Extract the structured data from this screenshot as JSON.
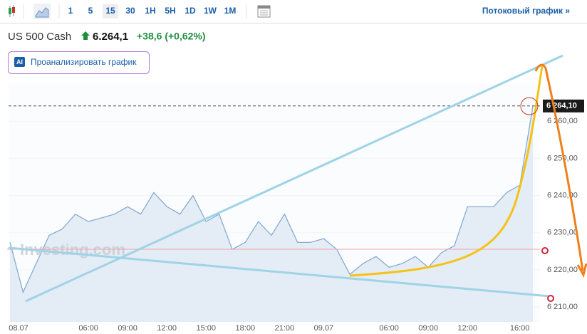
{
  "toolbar": {
    "intervals": [
      "1",
      "5",
      "15",
      "30",
      "1H",
      "5H",
      "1D",
      "1W",
      "1M"
    ],
    "stream_link": "Потоковый график »"
  },
  "header": {
    "symbol": "US 500 Cash",
    "price": "6.264,1",
    "change": "+38,6 (+0,62%)"
  },
  "analyze_button": {
    "badge": "AI",
    "label": "Проанализировать график"
  },
  "watermark": "Investing.com",
  "chart_data": {
    "type": "area",
    "categories": [
      "08.07",
      null,
      null,
      null,
      null,
      null,
      "06:00",
      null,
      null,
      "09:00",
      null,
      null,
      "12:00",
      null,
      null,
      "15:00",
      null,
      null,
      "18:00",
      null,
      null,
      "21:00",
      null,
      null,
      "09.07",
      null,
      null,
      null,
      null,
      "06:00",
      null,
      null,
      "09:00",
      null,
      null,
      "12:00",
      null,
      null,
      null,
      "16:00",
      null
    ],
    "values": [
      6227.4,
      6214,
      6221.7,
      6229.3,
      6231,
      6235,
      6233,
      6234,
      6235,
      6237,
      6235,
      6240.8,
      6237,
      6235,
      6240,
      6233,
      6235,
      6225.5,
      6227.4,
      6233,
      6229.3,
      6235,
      6227.4,
      6227.4,
      6228.4,
      6225.5,
      6218.8,
      6221.7,
      6223.6,
      6220.7,
      6221.7,
      6223.6,
      6220.7,
      6224.6,
      6226.5,
      6237,
      6237,
      6237,
      6240.8,
      6242.8,
      6264.1
    ],
    "color": "#7ea6cf",
    "ylim": [
      6206,
      6270
    ],
    "yticks": [
      {
        "value": 6210,
        "label": "6 210,00"
      },
      {
        "value": 6220,
        "label": "6 220,00"
      },
      {
        "value": 6230,
        "label": "6 230,00"
      },
      {
        "value": 6240,
        "label": "6 240,00"
      },
      {
        "value": 6250,
        "label": "6 250,00"
      },
      {
        "value": 6260,
        "label": "6 260,00"
      }
    ],
    "last_price": {
      "value": 6264.1,
      "label": "6 264,10"
    }
  }
}
